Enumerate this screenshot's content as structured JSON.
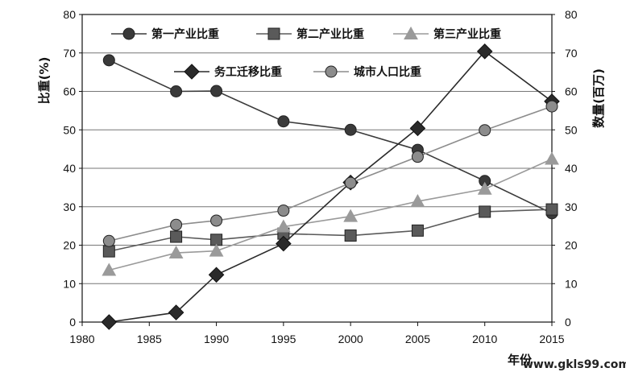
{
  "chart_data": {
    "type": "line",
    "xlabel": "年份",
    "ylabel_left": "比重(%)",
    "ylabel_right": "数量(百万)",
    "xlim": [
      1980,
      2015
    ],
    "ylim": [
      0,
      80
    ],
    "ylim_right": [
      0,
      80
    ],
    "xticks": [
      "1980",
      "1985",
      "1990",
      "1995",
      "2000",
      "2005",
      "2010",
      "2015"
    ],
    "yticks": [
      "0",
      "10",
      "20",
      "30",
      "40",
      "50",
      "60",
      "70",
      "80"
    ],
    "grid": "horizontal",
    "legend_position": "top",
    "series": [
      {
        "name": "第一产业比重",
        "axis": "left",
        "marker": "circle",
        "color": "#3a3a3a",
        "x": [
          1982,
          1987,
          1990,
          1995,
          2000,
          2005,
          2010,
          2015
        ],
        "y": [
          68.1,
          60.0,
          60.1,
          52.2,
          50.0,
          44.8,
          36.7,
          28.3
        ]
      },
      {
        "name": "第二产业比重",
        "axis": "left",
        "marker": "square",
        "color": "#5a5a5a",
        "x": [
          1982,
          1987,
          1990,
          1995,
          2000,
          2005,
          2010,
          2015
        ],
        "y": [
          18.4,
          22.2,
          21.4,
          23.0,
          22.5,
          23.8,
          28.7,
          29.3
        ]
      },
      {
        "name": "第三产业比重",
        "axis": "left",
        "marker": "triangle",
        "color": "#9a9a9a",
        "x": [
          1982,
          1987,
          1990,
          1995,
          2000,
          2005,
          2010,
          2015
        ],
        "y": [
          13.5,
          18.0,
          18.5,
          24.8,
          27.5,
          31.4,
          34.6,
          42.4
        ]
      },
      {
        "name": "务工迁移比重",
        "axis": "right",
        "marker": "diamond",
        "color": "#2a2a2a",
        "x": [
          1982,
          1987,
          1990,
          1995,
          2000,
          2005,
          2010,
          2015
        ],
        "y": [
          0.0,
          2.5,
          12.3,
          20.4,
          36.3,
          50.4,
          70.4,
          57.4
        ]
      },
      {
        "name": "城市人口比重",
        "axis": "left",
        "marker": "circle",
        "color": "#8c8c8c",
        "x": [
          1982,
          1987,
          1990,
          1995,
          2000,
          2005,
          2010,
          2015
        ],
        "y": [
          21.1,
          25.3,
          26.4,
          29.0,
          36.2,
          43.0,
          49.9,
          56.1
        ]
      }
    ]
  },
  "watermark": "www.gkls99.com",
  "colors": {
    "grid": "#777777",
    "axis": "#111111"
  }
}
